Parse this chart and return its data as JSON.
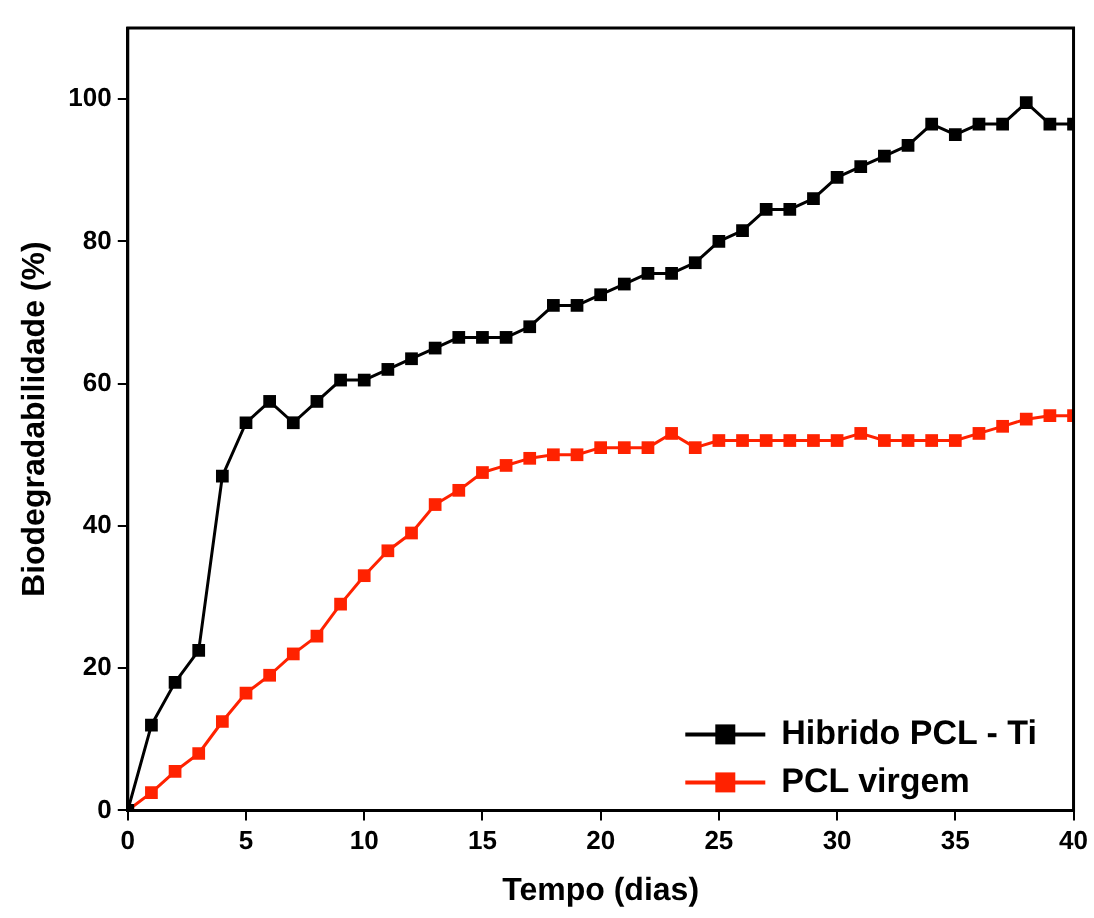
{
  "chart_data": {
    "type": "line",
    "xlabel": "Tempo (dias)",
    "ylabel": "Biodegradabilidade (%)",
    "x": [
      0,
      1,
      2,
      3,
      4,
      5,
      6,
      7,
      8,
      9,
      10,
      11,
      12,
      13,
      14,
      15,
      16,
      17,
      18,
      19,
      20,
      21,
      22,
      23,
      24,
      25,
      26,
      27,
      28,
      29,
      30,
      31,
      32,
      33,
      34,
      35,
      36,
      37,
      38,
      39,
      40
    ],
    "series": [
      {
        "name": "Hibrido PCL - Ti",
        "color": "#000000",
        "values": [
          0,
          12,
          18,
          22.5,
          47,
          54.5,
          57.5,
          54.5,
          57.5,
          60.5,
          60.5,
          62,
          63.5,
          65,
          66.5,
          66.5,
          66.5,
          68,
          71,
          71,
          72.5,
          74,
          75.5,
          75.5,
          77,
          80,
          81.5,
          84.5,
          84.5,
          86,
          89,
          90.5,
          92,
          93.5,
          96.5,
          95,
          96.5,
          96.5,
          99.5,
          96.5,
          96.5
        ]
      },
      {
        "name": "PCL virgem",
        "color": "#ff2200",
        "values": [
          0,
          2.5,
          5.5,
          8,
          12.5,
          16.5,
          19,
          22,
          24.5,
          29,
          33,
          36.5,
          39,
          43,
          45,
          47.5,
          48.5,
          49.5,
          50,
          50,
          51,
          51,
          51,
          53,
          51,
          52,
          52,
          52,
          52,
          52,
          52,
          53,
          52,
          52,
          52,
          52,
          53,
          54,
          55,
          55.5,
          55.5
        ]
      }
    ],
    "xlim": [
      0,
      40
    ],
    "xticks": [
      0,
      5,
      10,
      15,
      20,
      25,
      30,
      35,
      40
    ],
    "ylim": [
      0,
      110
    ],
    "yticks": [
      0,
      20,
      40,
      60,
      80,
      100
    ],
    "grid": false,
    "legend": "bottom right",
    "marker": "square",
    "line_style": "solid"
  }
}
